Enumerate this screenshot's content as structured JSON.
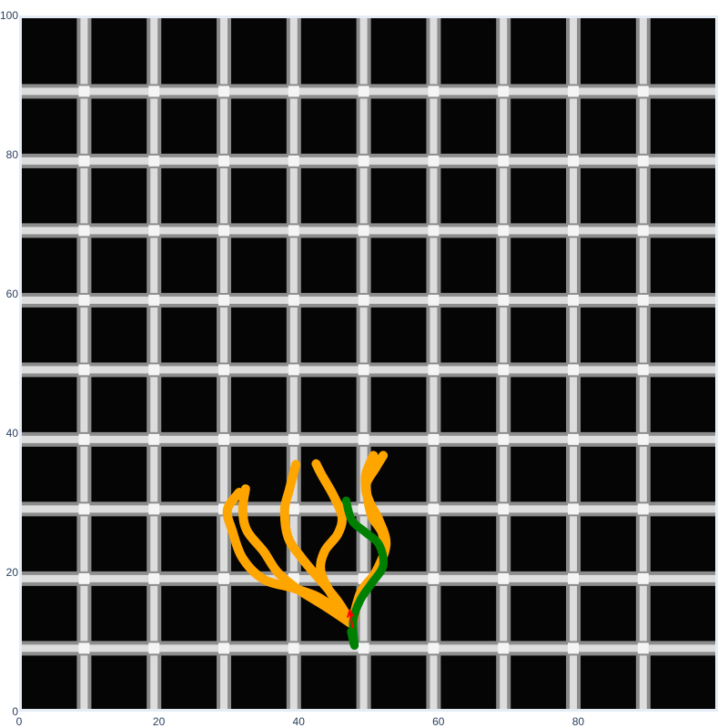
{
  "chart_data": {
    "type": "line",
    "title": "",
    "xlabel": "",
    "ylabel": "",
    "xlim": [
      0,
      100
    ],
    "ylim": [
      0,
      100
    ],
    "x_ticks": [
      "0",
      "20",
      "40",
      "60",
      "80"
    ],
    "y_ticks": [
      "0",
      "20",
      "40",
      "60",
      "80",
      "100"
    ],
    "x_tick_values": [
      0,
      20,
      40,
      60,
      80
    ],
    "y_tick_values": [
      0,
      20,
      40,
      60,
      80,
      100
    ],
    "background_image": {
      "description": "black floor with light-gray grid lines",
      "colors": {
        "cell": "#050505",
        "line_light": "#e6e6e6",
        "line_mid": "#8c8c8c"
      },
      "vertical_lines_x": [
        9.3,
        19.3,
        29.3,
        39.3,
        49.3,
        59.3,
        69.3,
        79.3,
        89.3
      ],
      "horizontal_lines_y": [
        9.1,
        19.1,
        29.1,
        39.1,
        49.1,
        59.1,
        69.1,
        79.1,
        89.1
      ]
    },
    "series": [
      {
        "color": "#ffa500",
        "points": [
          [
            47.7,
            12.5
          ],
          [
            45.5,
            14.5
          ],
          [
            42.7,
            16.5
          ],
          [
            39,
            17.8
          ],
          [
            35,
            19
          ],
          [
            32,
            22
          ],
          [
            30.5,
            26
          ],
          [
            29.8,
            29
          ],
          [
            31.5,
            31.5
          ]
        ]
      },
      {
        "color": "#ffa500",
        "points": [
          [
            47.7,
            12.5
          ],
          [
            44,
            15
          ],
          [
            40,
            17.5
          ],
          [
            37,
            20
          ],
          [
            35,
            23
          ],
          [
            32.6,
            26
          ],
          [
            32,
            29
          ],
          [
            32.4,
            32
          ]
        ]
      },
      {
        "color": "#ffa500",
        "points": [
          [
            47.7,
            12.5
          ],
          [
            45.5,
            16
          ],
          [
            43,
            19
          ],
          [
            40.5,
            22
          ],
          [
            38.5,
            25
          ],
          [
            38,
            29
          ],
          [
            38.7,
            32
          ],
          [
            39.6,
            35.5
          ]
        ]
      },
      {
        "color": "#ffa500",
        "points": [
          [
            47.7,
            12.5
          ],
          [
            45.2,
            16
          ],
          [
            43.2,
            20
          ],
          [
            43.7,
            23
          ],
          [
            45.6,
            25.5
          ],
          [
            46.2,
            28
          ],
          [
            45,
            31
          ],
          [
            43.3,
            34
          ],
          [
            42.5,
            35.6
          ]
        ]
      },
      {
        "color": "#ffa500",
        "points": [
          [
            47.7,
            12.5
          ],
          [
            48.5,
            16
          ],
          [
            50.5,
            19
          ],
          [
            52,
            22
          ],
          [
            52,
            25.5
          ],
          [
            50.5,
            28
          ],
          [
            49.8,
            31
          ],
          [
            49.6,
            34
          ],
          [
            50.7,
            36.8
          ]
        ]
      },
      {
        "color": "#ffa500",
        "points": [
          [
            47.7,
            12.5
          ],
          [
            48.8,
            17
          ],
          [
            51,
            20
          ],
          [
            52.5,
            24
          ],
          [
            51.5,
            27.5
          ],
          [
            50.2,
            30
          ],
          [
            49.6,
            32.5
          ],
          [
            51,
            35
          ],
          [
            52.1,
            36.8
          ]
        ]
      },
      {
        "color": "#008000",
        "points": [
          [
            47.5,
            11.5
          ],
          [
            48,
            9.5
          ],
          [
            47.8,
            13
          ],
          [
            48.8,
            16
          ],
          [
            50.5,
            18.5
          ],
          [
            52.1,
            21
          ],
          [
            51.5,
            24
          ],
          [
            49.5,
            25.8
          ],
          [
            47.6,
            27.5
          ],
          [
            46.8,
            30.3
          ]
        ]
      }
    ],
    "arrow_annotation": {
      "color": "#ff0000",
      "from": [
        47.7,
        12.0
      ],
      "to": [
        47.3,
        14.5
      ]
    }
  }
}
